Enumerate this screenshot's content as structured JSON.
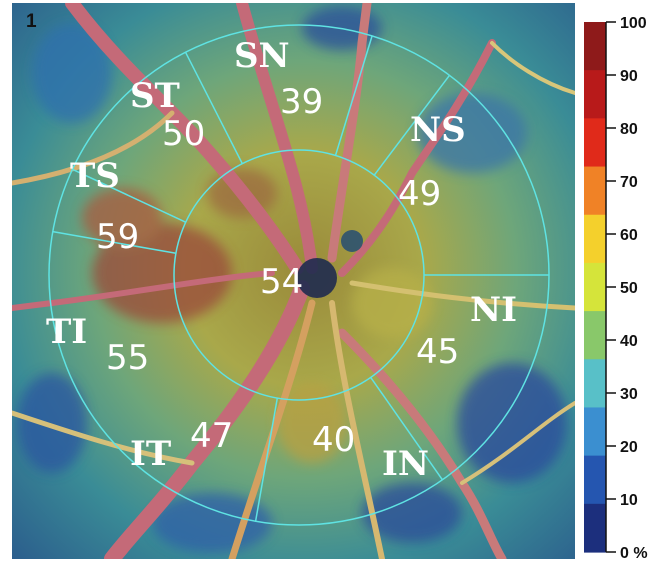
{
  "panel_index": "1",
  "center": {
    "value": "54"
  },
  "sectors": [
    {
      "id": "sn",
      "label": "SN",
      "value": "39"
    },
    {
      "id": "ns",
      "label": "NS",
      "value": "49"
    },
    {
      "id": "ni",
      "label": "NI",
      "value": "45"
    },
    {
      "id": "in",
      "label": "IN",
      "value": "40"
    },
    {
      "id": "it",
      "label": "IT",
      "value": "47"
    },
    {
      "id": "ti",
      "label": "TI",
      "value": "55"
    },
    {
      "id": "ts",
      "label": "TS",
      "value": "59"
    },
    {
      "id": "st",
      "label": "ST",
      "value": "50"
    }
  ],
  "colorbar": {
    "unit": "%",
    "ticks": [
      "100",
      "90",
      "80",
      "70",
      "60",
      "50",
      "40",
      "30",
      "20",
      "10",
      "0 %"
    ],
    "colors": [
      "#8e1a1a",
      "#b81a1a",
      "#e02a1a",
      "#f08226",
      "#f4d02c",
      "#d5e43a",
      "#89c86a",
      "#58c0c8",
      "#3b8fd0",
      "#2556b0",
      "#1c2f7d"
    ]
  },
  "colors": {
    "grid_lines": "#5fe3e3",
    "vessels": "#c46a78",
    "text": "#ffffff"
  }
}
